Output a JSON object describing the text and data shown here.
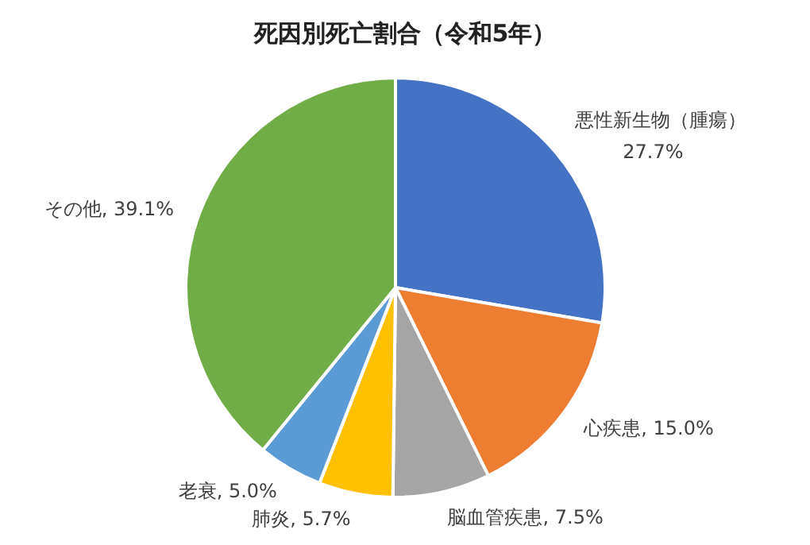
{
  "chart_data": {
    "type": "pie",
    "title": "死因別死亡割合（令和5年）",
    "categories": [
      "悪性新生物（腫瘍）",
      "心疾患",
      "脳血管疾患",
      "肺炎",
      "老衰",
      "その他"
    ],
    "values": [
      27.7,
      15.0,
      7.5,
      5.7,
      5.0,
      39.1
    ],
    "value_labels": [
      "27.7%",
      "15.0%",
      "7.5%",
      "5.7%",
      "5.0%",
      "39.1%"
    ],
    "colors": [
      "#4472c4",
      "#ed7d31",
      "#a5a5a5",
      "#ffc000",
      "#5b9bd5",
      "#70ad47"
    ],
    "legend": false
  }
}
